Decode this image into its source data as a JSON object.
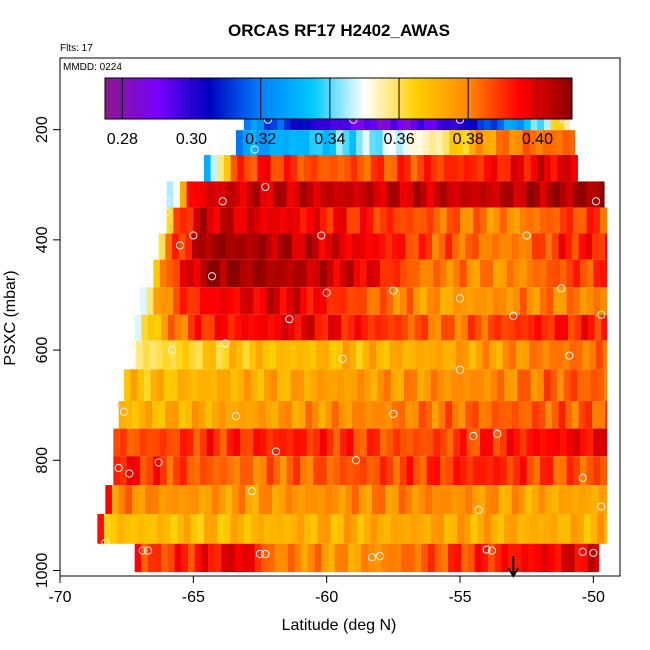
{
  "chart_data": {
    "type": "heatmap",
    "title": "ORCAS RF17 H2402_AWAS",
    "annotations": {
      "flts": "Flts: 17",
      "mmdd": "MMDD: 0224"
    },
    "xlabel": "Latitude (deg N)",
    "ylabel": "PSXC (mbar)",
    "xlim": [
      -70,
      -49
    ],
    "ylim": [
      1010,
      70
    ],
    "x_ticks": [
      -70,
      -65,
      -60,
      -55,
      -50
    ],
    "x_tick_labels": [
      "-70",
      "-65",
      "-60",
      "-55",
      "-50"
    ],
    "y_ticks": [
      200,
      400,
      600,
      800,
      1000
    ],
    "y_tick_labels": [
      "200",
      "400",
      "600",
      "800",
      "1000"
    ],
    "colorbar": {
      "range": [
        0.275,
        0.41
      ],
      "ticks": [
        0.28,
        0.3,
        0.32,
        0.34,
        0.36,
        0.38,
        0.4
      ],
      "tick_labels": [
        "0.28",
        "0.30",
        "0.32",
        "0.34",
        "0.36",
        "0.38",
        "0.40"
      ],
      "stops": [
        "#8b1a8b",
        "#7a00ff",
        "#0000c0",
        "#0080ff",
        "#00c8ff",
        "#ffffff",
        "#ffd000",
        "#ff8800",
        "#ff0000",
        "#8b0000"
      ]
    },
    "bands": [
      {
        "p": 180,
        "x0": -63.1,
        "x1": -50.9,
        "segs": [
          [
            -63.1,
            0.325
          ],
          [
            -62.0,
            0.315
          ],
          [
            -61.0,
            0.305
          ],
          [
            -60.0,
            0.298
          ],
          [
            -59.0,
            0.292
          ],
          [
            -58.0,
            0.288
          ],
          [
            -57.0,
            0.29
          ],
          [
            -56.0,
            0.295
          ],
          [
            -55.0,
            0.3
          ],
          [
            -54.0,
            0.312
          ],
          [
            -53.0,
            0.325
          ],
          [
            -52.0,
            0.34
          ],
          [
            -51.5,
            0.36
          ]
        ],
        "points": [
          [
            -62.2,
            182
          ],
          [
            -59.0,
            182
          ],
          [
            -55.0,
            182
          ],
          [
            -51.1,
            182
          ]
        ]
      },
      {
        "p": 222,
        "x0": -63.4,
        "x1": -50.7,
        "segs": [
          [
            -63.4,
            0.325
          ],
          [
            -61.5,
            0.33
          ],
          [
            -59.5,
            0.338
          ],
          [
            -57.5,
            0.347
          ],
          [
            -56.0,
            0.355
          ],
          [
            -55.0,
            0.366
          ],
          [
            -54.0,
            0.377
          ],
          [
            -52.5,
            0.383
          ]
        ],
        "points": [
          [
            -62.7,
            236
          ]
        ]
      },
      {
        "p": 270,
        "x0": -64.6,
        "x1": -50.6,
        "segs": [
          [
            -64.6,
            0.325
          ],
          [
            -64.0,
            0.355
          ],
          [
            -63.5,
            0.385
          ],
          [
            -62.5,
            0.392
          ],
          [
            -60.0,
            0.385
          ],
          [
            -57.0,
            0.388
          ],
          [
            -54.0,
            0.392
          ],
          [
            -52.0,
            0.398
          ]
        ],
        "points": [
          [
            -62.3,
            304
          ]
        ]
      },
      {
        "p": 318,
        "x0": -66.0,
        "x1": -49.6,
        "segs": [
          [
            -66.0,
            0.335
          ],
          [
            -65.6,
            0.355
          ],
          [
            -65.2,
            0.39
          ],
          [
            -64.5,
            0.4
          ],
          [
            -62.0,
            0.402
          ],
          [
            -58.0,
            0.402
          ],
          [
            -54.0,
            0.402
          ],
          [
            -51.5,
            0.406
          ]
        ],
        "points": [
          [
            -66.0,
            330
          ],
          [
            -66.0,
            350
          ],
          [
            -63.9,
            330
          ],
          [
            -49.9,
            330
          ]
        ]
      },
      {
        "p": 365,
        "x0": -66.0,
        "x1": -49.5,
        "segs": [
          [
            -66.0,
            0.355
          ],
          [
            -65.6,
            0.385
          ],
          [
            -64.8,
            0.402
          ],
          [
            -62.0,
            0.398
          ],
          [
            -59.0,
            0.392
          ],
          [
            -56.0,
            0.385
          ],
          [
            -53.0,
            0.378
          ],
          [
            -51.0,
            0.388
          ]
        ],
        "points": [
          [
            -65.0,
            392
          ],
          [
            -60.2,
            392
          ],
          [
            -52.5,
            392
          ],
          [
            -65.5,
            410
          ]
        ]
      },
      {
        "p": 412,
        "x0": -66.3,
        "x1": -49.5,
        "segs": [
          [
            -66.3,
            0.36
          ],
          [
            -65.8,
            0.385
          ],
          [
            -65.0,
            0.398
          ],
          [
            -64.5,
            0.408
          ],
          [
            -61.5,
            0.404
          ],
          [
            -58.5,
            0.396
          ],
          [
            -56.0,
            0.386
          ],
          [
            -53.0,
            0.38
          ],
          [
            -51.0,
            0.392
          ]
        ],
        "points": []
      },
      {
        "p": 460,
        "x0": -66.5,
        "x1": -49.5,
        "segs": [
          [
            -66.5,
            0.36
          ],
          [
            -66.0,
            0.385
          ],
          [
            -65.0,
            0.4
          ],
          [
            -64.3,
            0.41
          ],
          [
            -61.0,
            0.404
          ],
          [
            -58.5,
            0.398
          ],
          [
            -56.5,
            0.382
          ],
          [
            -53.0,
            0.378
          ],
          [
            -51.0,
            0.388
          ]
        ],
        "points": [
          [
            -64.3,
            466
          ],
          [
            -60.0,
            496
          ],
          [
            -57.5,
            492
          ],
          [
            -55.0,
            506
          ],
          [
            -51.2,
            488
          ]
        ]
      },
      {
        "p": 512,
        "x0": -67.0,
        "x1": -49.5,
        "segs": [
          [
            -67.0,
            0.35
          ],
          [
            -66.5,
            0.365
          ],
          [
            -65.8,
            0.385
          ],
          [
            -64.5,
            0.395
          ],
          [
            -61.5,
            0.4
          ],
          [
            -58.5,
            0.385
          ],
          [
            -55.5,
            0.375
          ],
          [
            -52.5,
            0.38
          ]
        ],
        "points": [
          [
            -61.4,
            544
          ],
          [
            -53.0,
            538
          ],
          [
            -49.7,
            536
          ]
        ]
      },
      {
        "p": 560,
        "x0": -67.2,
        "x1": -49.5,
        "segs": [
          [
            -67.2,
            0.345
          ],
          [
            -66.8,
            0.36
          ],
          [
            -66.0,
            0.378
          ],
          [
            -64.5,
            0.392
          ],
          [
            -61.0,
            0.398
          ],
          [
            -58.0,
            0.39
          ],
          [
            -55.5,
            0.382
          ],
          [
            -52.0,
            0.392
          ]
        ],
        "points": [
          [
            -63.8,
            588
          ],
          [
            -65.8,
            600
          ],
          [
            -59.4,
            616
          ],
          [
            -50.9,
            610
          ]
        ]
      },
      {
        "p": 605,
        "x0": -67.4,
        "x1": -49.5,
        "segs": [
          [
            -67.4,
            0.355
          ],
          [
            -66.0,
            0.362
          ],
          [
            -63.0,
            0.368
          ],
          [
            -60.0,
            0.37
          ],
          [
            -57.0,
            0.372
          ],
          [
            -54.0,
            0.375
          ],
          [
            -51.5,
            0.382
          ]
        ],
        "points": [
          [
            -55.0,
            636
          ]
        ]
      },
      {
        "p": 665,
        "x0": -67.6,
        "x1": -49.5,
        "segs": [
          [
            -67.6,
            0.368
          ],
          [
            -64.0,
            0.372
          ],
          [
            -60.0,
            0.375
          ],
          [
            -56.0,
            0.378
          ],
          [
            -53.0,
            0.38
          ],
          [
            -51.0,
            0.385
          ]
        ],
        "points": []
      },
      {
        "p": 720,
        "x0": -67.8,
        "x1": -49.5,
        "segs": [
          [
            -67.8,
            0.37
          ],
          [
            -64.0,
            0.374
          ],
          [
            -60.0,
            0.378
          ],
          [
            -56.0,
            0.382
          ],
          [
            -53.0,
            0.385
          ]
        ],
        "points": [
          [
            -67.6,
            712
          ],
          [
            -63.4,
            720
          ],
          [
            -57.5,
            716
          ]
        ]
      },
      {
        "p": 765,
        "x0": -68.0,
        "x1": -49.5,
        "segs": [
          [
            -68.0,
            0.385
          ],
          [
            -64.5,
            0.39
          ],
          [
            -61.0,
            0.392
          ],
          [
            -57.0,
            0.386
          ],
          [
            -54.0,
            0.39
          ],
          [
            -51.0,
            0.396
          ]
        ],
        "points": [
          [
            -54.5,
            756
          ],
          [
            -53.6,
            752
          ],
          [
            -61.9,
            784
          ],
          [
            -58.9,
            800
          ]
        ]
      },
      {
        "p": 820,
        "x0": -68.0,
        "x1": -49.5,
        "segs": [
          [
            -68.0,
            0.395
          ],
          [
            -66.0,
            0.388
          ],
          [
            -63.0,
            0.382
          ],
          [
            -60.0,
            0.385
          ],
          [
            -57.0,
            0.388
          ],
          [
            -54.0,
            0.392
          ],
          [
            -51.0,
            0.386
          ]
        ],
        "points": [
          [
            -67.8,
            814
          ],
          [
            -67.4,
            824
          ],
          [
            -66.3,
            804
          ],
          [
            -50.4,
            832
          ]
        ]
      },
      {
        "p": 870,
        "x0": -68.3,
        "x1": -49.5,
        "segs": [
          [
            -68.3,
            0.405
          ],
          [
            -68.0,
            0.38
          ],
          [
            -64.0,
            0.376
          ],
          [
            -60.0,
            0.378
          ],
          [
            -56.0,
            0.38
          ],
          [
            -52.0,
            0.374
          ]
        ],
        "points": [
          [
            -62.8,
            856
          ],
          [
            -54.3,
            890
          ],
          [
            -49.7,
            884
          ]
        ]
      },
      {
        "p": 925,
        "x0": -68.6,
        "x1": -49.5,
        "segs": [
          [
            -68.6,
            0.405
          ],
          [
            -68.3,
            0.368
          ],
          [
            -64.0,
            0.37
          ],
          [
            -60.0,
            0.372
          ],
          [
            -56.0,
            0.374
          ],
          [
            -52.0,
            0.372
          ]
        ],
        "points": [
          [
            -68.3,
            950
          ],
          [
            -66.7,
            964
          ],
          [
            -66.9,
            964
          ],
          [
            -62.5,
            970
          ],
          [
            -62.3,
            970
          ],
          [
            -58.3,
            976
          ],
          [
            -58.0,
            974
          ],
          [
            -54.0,
            962
          ],
          [
            -53.8,
            964
          ],
          [
            -50.4,
            966
          ],
          [
            -50.0,
            968
          ]
        ]
      },
      {
        "p": 978,
        "x0": -67.2,
        "x1": -49.8,
        "segs": [
          [
            -67.2,
            0.402
          ],
          [
            -66.9,
            0.386
          ],
          [
            -64.5,
            0.394
          ],
          [
            -63.0,
            0.4
          ],
          [
            -62.2,
            0.382
          ],
          [
            -59.0,
            0.376
          ],
          [
            -56.0,
            0.386
          ],
          [
            -53.5,
            0.392
          ],
          [
            -51.0,
            0.398
          ]
        ],
        "points": []
      }
    ],
    "marker": {
      "x": -53.0
    }
  }
}
